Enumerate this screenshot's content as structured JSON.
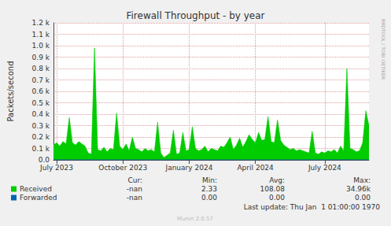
{
  "chart_data": {
    "type": "area",
    "title": "Firewall Throughput - by year",
    "y_label": "Packets/second",
    "categories": [
      null,
      "July 2023",
      null,
      null,
      null,
      null,
      null,
      null,
      null,
      null,
      null,
      null,
      null,
      null,
      null,
      null,
      null,
      null,
      null,
      null,
      null,
      null,
      "October 2023",
      null,
      null,
      null,
      null,
      null,
      null,
      null,
      null,
      null,
      null,
      null,
      null,
      null,
      null,
      null,
      null,
      null,
      null,
      null,
      null,
      "January 2024",
      null,
      null,
      null,
      null,
      null,
      null,
      null,
      null,
      null,
      null,
      null,
      null,
      null,
      null,
      null,
      null,
      null,
      null,
      null,
      null,
      "April 2024",
      null,
      null,
      null,
      null,
      null,
      null,
      null,
      null,
      null,
      null,
      null,
      null,
      null,
      null,
      null,
      null,
      null,
      null,
      null,
      null,
      null,
      "July 2024",
      null,
      null,
      null,
      null,
      null,
      null,
      null,
      null,
      null,
      null,
      null,
      null,
      null,
      null
    ],
    "series": [
      {
        "name": "Received",
        "color": "#00cc00",
        "type": "area",
        "values": [
          130,
          150,
          120,
          160,
          140,
          370,
          150,
          130,
          160,
          140,
          120,
          60,
          50,
          980,
          90,
          80,
          110,
          70,
          100,
          90,
          410,
          120,
          90,
          140,
          80,
          200,
          100,
          90,
          70,
          100,
          80,
          90,
          70,
          330,
          60,
          20,
          40,
          60,
          260,
          50,
          60,
          240,
          80,
          90,
          290,
          100,
          80,
          90,
          120,
          70,
          100,
          90,
          80,
          120,
          110,
          150,
          200,
          90,
          130,
          190,
          110,
          160,
          220,
          180,
          150,
          240,
          170,
          180,
          380,
          160,
          150,
          350,
          170,
          130,
          110,
          90,
          100,
          80,
          90,
          80,
          70,
          60,
          250,
          60,
          50,
          70,
          60,
          80,
          70,
          90,
          60,
          120,
          80,
          800,
          100,
          90,
          70,
          80,
          150,
          430,
          300
        ]
      },
      {
        "name": "Forwarded",
        "color": "#0066b3",
        "type": "line",
        "values": [
          0,
          0,
          0,
          0,
          0,
          0,
          0,
          0,
          0,
          0,
          0,
          0,
          0,
          0,
          0,
          0,
          0,
          0,
          0,
          0,
          0,
          0,
          0,
          0,
          0,
          0,
          0,
          0,
          0,
          0,
          0,
          0,
          0,
          0,
          0,
          0,
          0,
          0,
          0,
          0,
          0,
          0,
          0,
          0,
          0,
          0,
          0,
          0,
          0,
          0,
          0,
          0,
          0,
          0,
          0,
          0,
          0,
          0,
          0,
          0,
          0,
          0,
          0,
          0,
          0,
          0,
          0,
          0,
          0,
          0,
          0,
          0,
          0,
          0,
          0,
          0,
          0,
          0,
          0,
          0,
          0,
          0,
          0,
          0,
          0,
          0,
          0,
          0,
          0,
          0,
          0,
          0,
          0,
          0,
          0,
          0,
          0,
          0,
          0,
          0,
          0
        ]
      }
    ],
    "ylim": [
      0,
      1200
    ],
    "yticks": [
      {
        "value": 0,
        "label": "0.0"
      },
      {
        "value": 100,
        "label": "0.1 k"
      },
      {
        "value": 200,
        "label": "0.2 k"
      },
      {
        "value": 300,
        "label": "0.3 k"
      },
      {
        "value": 400,
        "label": "0.4 k"
      },
      {
        "value": 500,
        "label": "0.5 k"
      },
      {
        "value": 600,
        "label": "0.6 k"
      },
      {
        "value": 700,
        "label": "0.7 k"
      },
      {
        "value": 800,
        "label": "0.8 k"
      },
      {
        "value": 900,
        "label": "0.9 k"
      },
      {
        "value": 1000,
        "label": "1.0 k"
      },
      {
        "value": 1100,
        "label": "1.1 k"
      },
      {
        "value": 1200,
        "label": "1.2 k"
      }
    ],
    "grid": true,
    "legend": "bottom",
    "stats": {
      "columns": [
        "Cur:",
        "Min:",
        "Avg:",
        "Max:"
      ],
      "rows": [
        {
          "name": "Received",
          "values": [
            "-nan",
            "2.33",
            "108.08",
            "34.96k"
          ]
        },
        {
          "name": "Forwarded",
          "values": [
            "-nan",
            "0.00",
            "0.00",
            "0.00"
          ]
        }
      ]
    },
    "annotations": [
      "Last update: Thu Jan  1 01:00:00 1970",
      "Munin 2.0.57",
      "RRDTOOL / TOBI OETIKER"
    ]
  }
}
